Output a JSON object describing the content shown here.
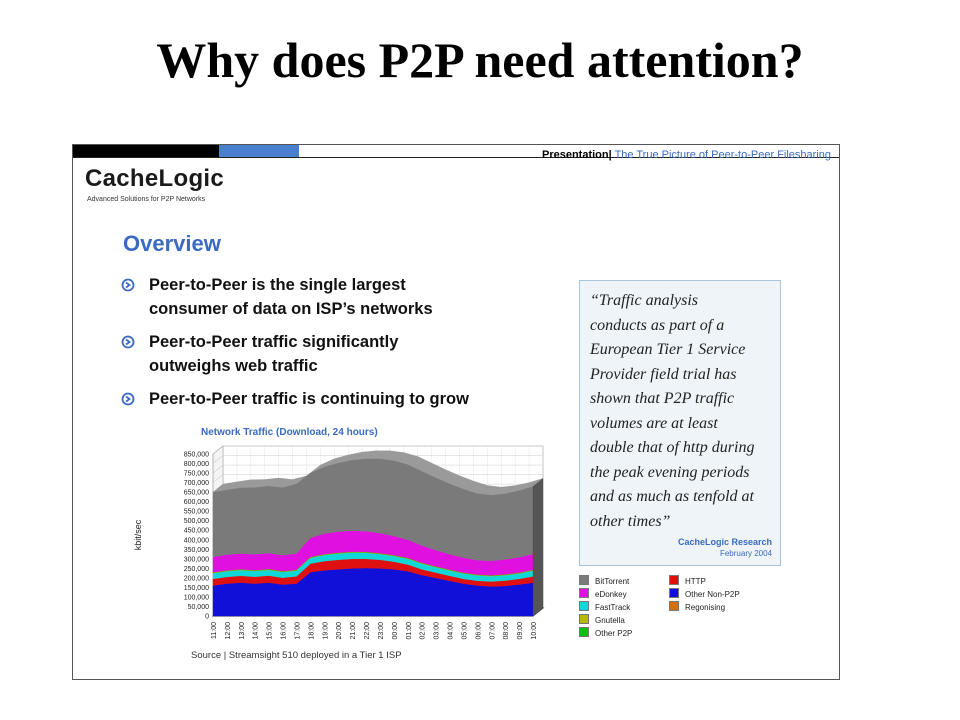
{
  "title": "Why does P2P need attention?",
  "slide": {
    "header_label": "Presentation",
    "header_sep": "|",
    "header_title": "The True Picture of Peer-to-Peer Filesharing",
    "logo": "CacheLogic",
    "logo_tagline": "Advanced Solutions for P2P Networks",
    "section_title": "Overview",
    "bullets": [
      {
        "lines": [
          "Peer-to-Peer is the single largest",
          "consumer of data on ISP’s networks"
        ]
      },
      {
        "lines": [
          "Peer-to-Peer traffic significantly",
          "outweighs web traffic"
        ]
      },
      {
        "lines": [
          "Peer-to-Peer traffic is continuing to grow"
        ]
      }
    ],
    "quote_lines": [
      "“Traffic analysis",
      "conducts as part of a",
      "European Tier 1 Service",
      "Provider field trial has",
      "shown that P2P traffic",
      "volumes are at least",
      "double that of http during",
      "the peak evening periods",
      "and as much as tenfold at",
      "other times”"
    ],
    "quote_source": "CacheLogic Research",
    "quote_date": "February 2004",
    "chart_source": "Source | Streamsight 510 deployed in a Tier 1 ISP"
  },
  "chart_data": {
    "type": "area",
    "title": "Network Traffic (Download, 24 hours)",
    "ylabel": "kbit/sec",
    "ylim": [
      0,
      850000
    ],
    "yticks": [
      "850,000",
      "800,000",
      "750,000",
      "700,000",
      "650,000",
      "600,000",
      "550,000",
      "500,000",
      "450,000",
      "400,000",
      "350,000",
      "300,000",
      "250,000",
      "200,000",
      "150,000",
      "100,000",
      "50,000",
      "0"
    ],
    "categories": [
      "11:00",
      "12:00",
      "13:00",
      "14:00",
      "15:00",
      "16:00",
      "17:00",
      "18:00",
      "19:00",
      "20:00",
      "21:00",
      "22:00",
      "23:00",
      "00:00",
      "01:00",
      "02:00",
      "03:00",
      "04:00",
      "05:00",
      "06:00",
      "07:00",
      "08:00",
      "09:00",
      "10:00"
    ],
    "stacked": true,
    "series": [
      {
        "name": "Other Non-P2P",
        "color": "#1010d8",
        "values": [
          160000,
          170000,
          175000,
          170000,
          175000,
          165000,
          170000,
          230000,
          240000,
          245000,
          250000,
          252000,
          250000,
          245000,
          235000,
          215000,
          200000,
          185000,
          170000,
          160000,
          155000,
          158000,
          165000,
          175000
        ]
      },
      {
        "name": "HTTP",
        "color": "#e01010",
        "values": [
          35000,
          35000,
          36000,
          36000,
          37000,
          36000,
          38000,
          45000,
          48000,
          50000,
          50000,
          48000,
          45000,
          40000,
          35000,
          30000,
          28000,
          26000,
          25000,
          25000,
          26000,
          28000,
          30000,
          33000
        ]
      },
      {
        "name": "FastTrack",
        "color": "#10d8d8",
        "values": [
          30000,
          30000,
          30000,
          30000,
          30000,
          30000,
          30000,
          30000,
          32000,
          33000,
          33000,
          32000,
          30000,
          30000,
          30000,
          30000,
          28000,
          28000,
          28000,
          28000,
          28000,
          28000,
          28000,
          30000
        ]
      },
      {
        "name": "Gnutella",
        "color": "#b8b800",
        "values": [
          2000,
          2000,
          2000,
          2000,
          2000,
          2000,
          2000,
          2000,
          2000,
          2000,
          2000,
          2000,
          2000,
          2000,
          2000,
          2000,
          2000,
          2000,
          2000,
          2000,
          2000,
          2000,
          2000,
          2000
        ]
      },
      {
        "name": "Other P2P",
        "color": "#10c010",
        "values": [
          2000,
          2000,
          2000,
          2000,
          2000,
          2000,
          2000,
          2000,
          2000,
          2000,
          2000,
          2000,
          2000,
          2000,
          2000,
          2000,
          2000,
          2000,
          2000,
          2000,
          2000,
          2000,
          2000,
          2000
        ]
      },
      {
        "name": "Regonising",
        "color": "#d07010",
        "values": [
          1000,
          1000,
          1000,
          1000,
          1000,
          1000,
          1000,
          1000,
          1000,
          1000,
          1000,
          1000,
          1000,
          1000,
          1000,
          1000,
          1000,
          1000,
          1000,
          1000,
          1000,
          1000,
          1000,
          1000
        ]
      },
      {
        "name": "eDonkey",
        "color": "#e010e0",
        "values": [
          80000,
          82000,
          82000,
          83000,
          83000,
          83000,
          85000,
          100000,
          108000,
          110000,
          110000,
          108000,
          105000,
          100000,
          95000,
          90000,
          85000,
          80000,
          78000,
          75000,
          75000,
          78000,
          80000,
          82000
        ]
      },
      {
        "name": "BitTorrent",
        "color": "#7a7a7a",
        "values": [
          340000,
          340000,
          345000,
          350000,
          352000,
          355000,
          365000,
          340000,
          350000,
          360000,
          370000,
          380000,
          390000,
          395000,
          395000,
          390000,
          380000,
          370000,
          360000,
          350000,
          345000,
          345000,
          350000,
          355000
        ]
      }
    ]
  },
  "legend": [
    {
      "label": "BitTorrent",
      "color": "#7a7a7a"
    },
    {
      "label": "eDonkey",
      "color": "#e010e0"
    },
    {
      "label": "FastTrack",
      "color": "#10d8d8"
    },
    {
      "label": "Gnutella",
      "color": "#b8b800"
    },
    {
      "label": "Other P2P",
      "color": "#10c010"
    },
    {
      "label": "HTTP",
      "color": "#e01010"
    },
    {
      "label": "Other Non-P2P",
      "color": "#1010d8"
    },
    {
      "label": "Regonising",
      "color": "#d07010"
    }
  ]
}
